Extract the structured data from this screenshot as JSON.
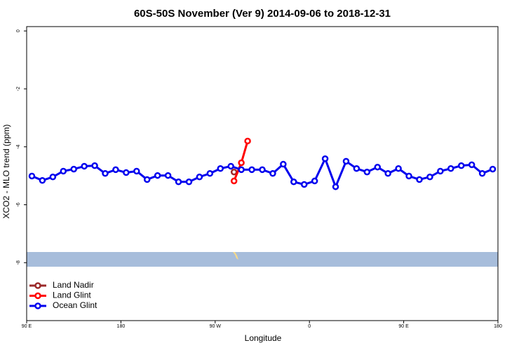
{
  "chart_data": {
    "type": "line",
    "title": "60S-50S November (Ver 9)   2014-09-06 to 2018-12-31",
    "x_label": "Longitude",
    "y_label": "XCO2 - MLO trend (ppm)",
    "xlim": [
      90,
      540
    ],
    "ylim": [
      -10,
      0.15
    ],
    "xticks": [
      {
        "value": 90,
        "label": "90 E"
      },
      180,
      {
        "value": 270,
        "label": "90 W"
      },
      {
        "value": 360,
        "label": "0"
      },
      {
        "value": 450,
        "label": "90 E"
      },
      {
        "value": 540,
        "label": "180"
      }
    ],
    "yticks": [
      0,
      -2,
      -4,
      -6,
      -8
    ],
    "legend": "bottom-left",
    "series": [
      {
        "name": "Land Nadir",
        "color": "#9b2a2a",
        "x": [
          288
        ],
        "values": [
          -4.87
        ]
      },
      {
        "name": "Land Glint",
        "color": "#ff0000",
        "x": [
          288,
          295,
          301
        ],
        "values": [
          -5.18,
          -4.55,
          -3.8
        ]
      },
      {
        "name": "Ocean Glint",
        "color": "#0000ee",
        "x": [
          95,
          105,
          115,
          125,
          135,
          145,
          155,
          165,
          175,
          185,
          195,
          205,
          215,
          225,
          235,
          245,
          255,
          265,
          275,
          285,
          295,
          305,
          315,
          325,
          335,
          345,
          355,
          365,
          375,
          385,
          395,
          405,
          415,
          425,
          435,
          445,
          455,
          465,
          475,
          485,
          495,
          505,
          515,
          525,
          535
        ],
        "values": [
          -5.01,
          -5.16,
          -5.04,
          -4.84,
          -4.77,
          -4.67,
          -4.65,
          -4.92,
          -4.79,
          -4.89,
          -4.84,
          -5.13,
          -4.99,
          -4.99,
          -5.21,
          -5.21,
          -5.04,
          -4.92,
          -4.75,
          -4.67,
          -4.79,
          -4.79,
          -4.79,
          -4.92,
          -4.6,
          -5.21,
          -5.3,
          -5.18,
          -4.41,
          -5.38,
          -4.5,
          -4.75,
          -4.87,
          -4.7,
          -4.92,
          -4.75,
          -5.01,
          -5.13,
          -5.04,
          -4.84,
          -4.75,
          -4.65,
          -4.62,
          -4.92,
          -4.77
        ]
      }
    ]
  }
}
